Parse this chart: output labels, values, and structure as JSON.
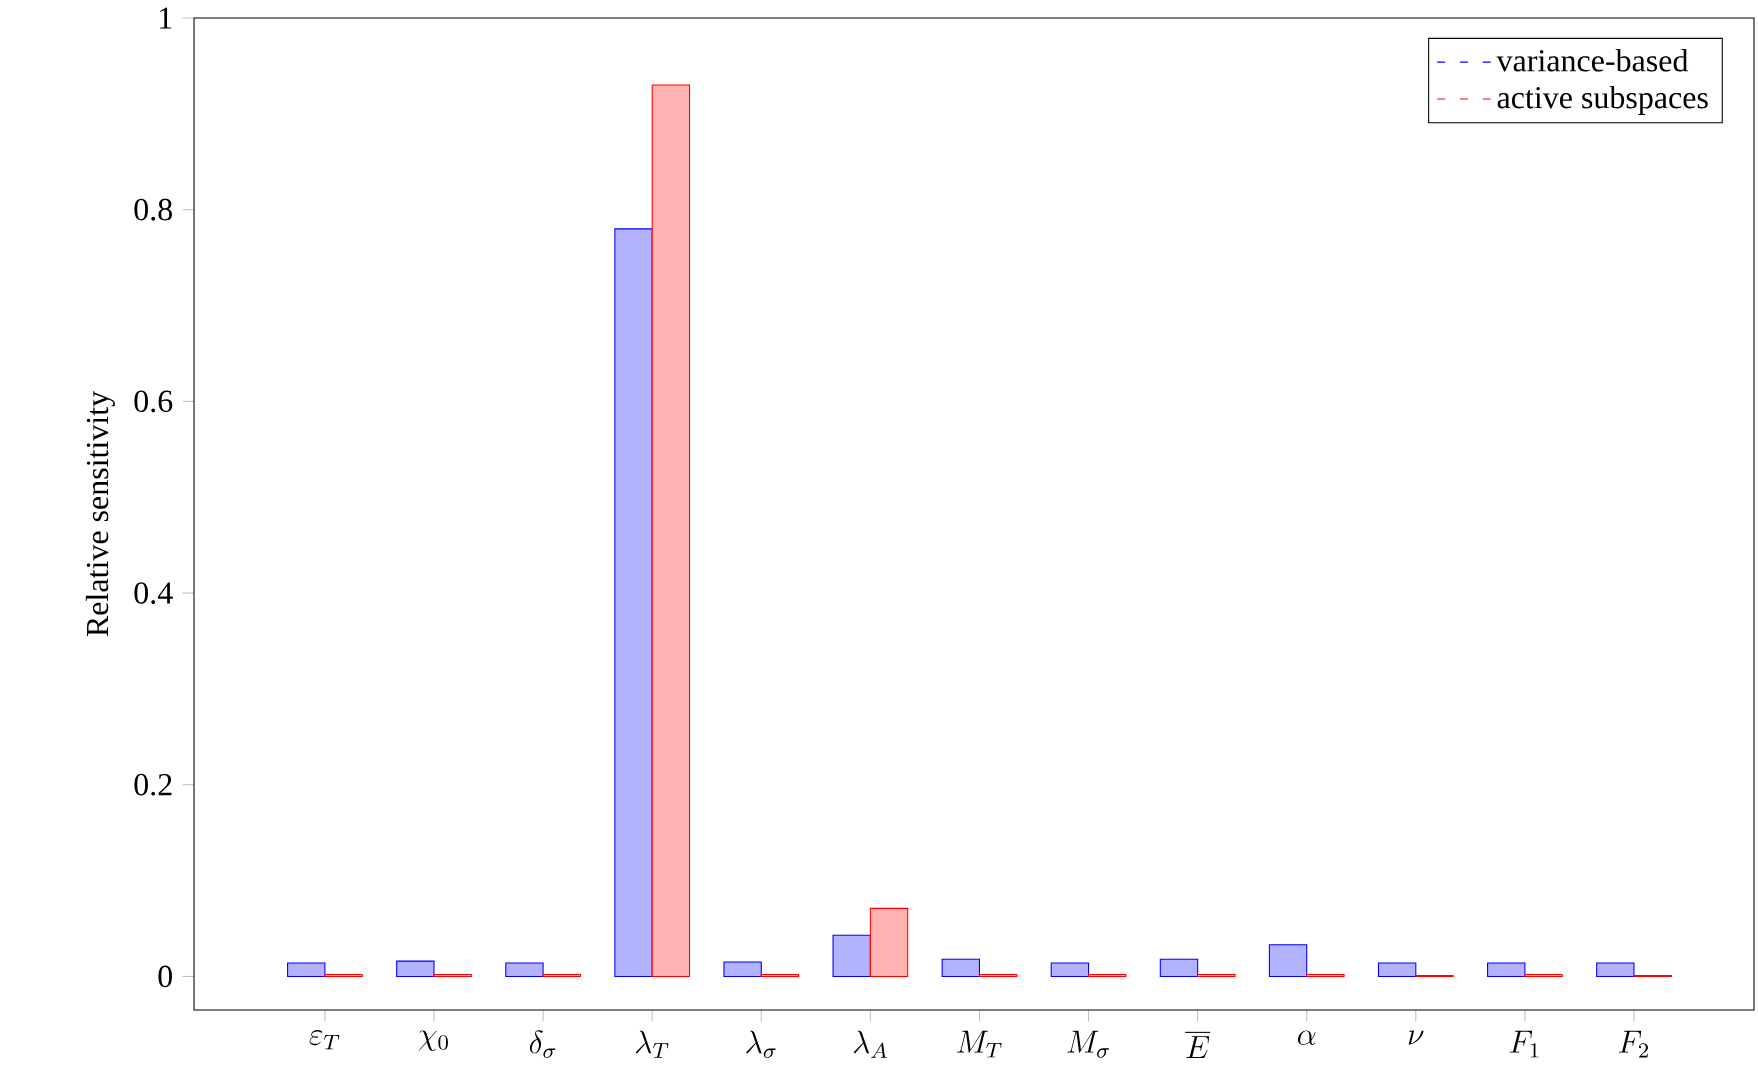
{
  "chart_data": {
    "type": "bar",
    "ylabel": "Relative sensitivity",
    "categories": [
      "\\varepsilon_T",
      "\\chi_0",
      "\\delta_\\sigma",
      "\\lambda_T",
      "\\lambda_\\sigma",
      "\\lambda_A",
      "M_T",
      "M_\\sigma",
      "\\overline{E}",
      "\\alpha",
      "\\nu",
      "F_1",
      "F_2"
    ],
    "series": [
      {
        "name": "variance-based",
        "color": "#0000ff",
        "values": [
          0.014,
          0.016,
          0.014,
          0.78,
          0.015,
          0.043,
          0.018,
          0.014,
          0.018,
          0.033,
          0.014,
          0.014,
          0.014
        ]
      },
      {
        "name": "active subspaces",
        "color": "#ff0000",
        "values": [
          0.002,
          0.002,
          0.002,
          0.93,
          0.002,
          0.071,
          0.002,
          0.002,
          0.002,
          0.002,
          0.001,
          0.002,
          0.001
        ]
      }
    ],
    "ylim": [
      -0.035,
      1
    ],
    "yticks": [
      0,
      0.2,
      0.4,
      0.6,
      0.8,
      1
    ],
    "grid": false,
    "legend": "top right"
  }
}
